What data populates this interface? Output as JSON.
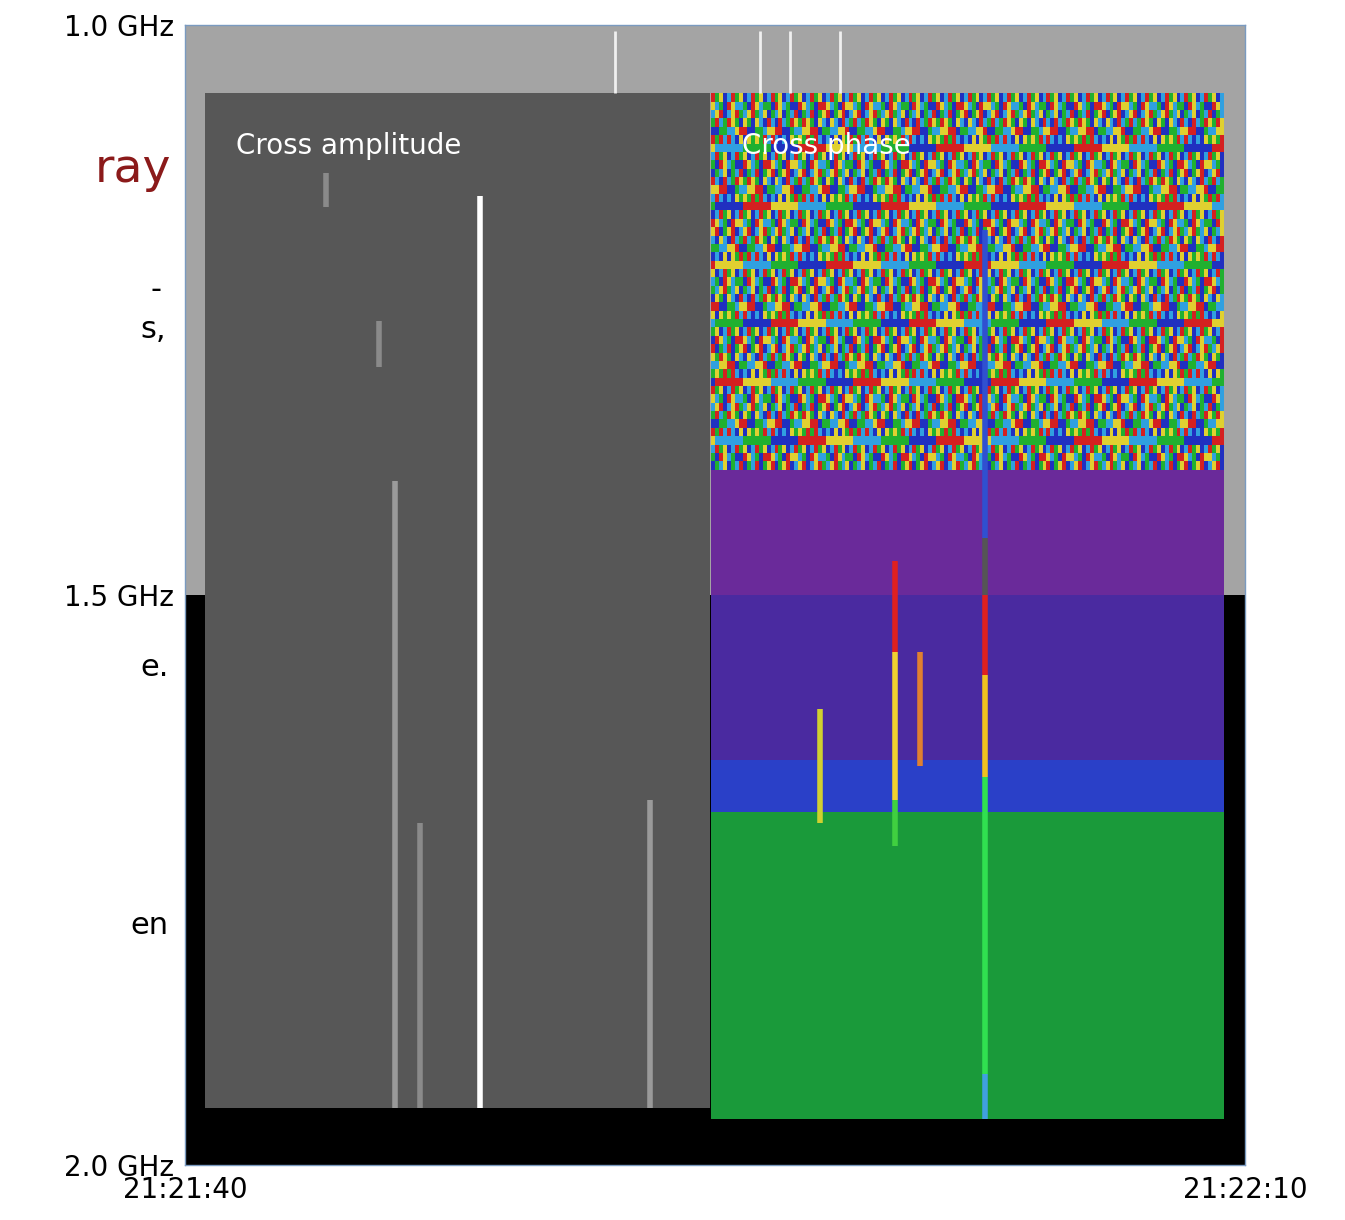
{
  "chart_data": {
    "type": "spectrogram",
    "xlim": [
      0,
      30
    ],
    "xticks": [
      {
        "value": 0,
        "label": "21:21:40"
      },
      {
        "value": 30,
        "label": "21:22:10"
      }
    ],
    "ylim": [
      2.0,
      1.0
    ],
    "yticks": [
      {
        "value": 1.0,
        "label": "1.0 GHz"
      },
      {
        "value": 1.5,
        "label": "1.5 GHz"
      },
      {
        "value": 2.0,
        "label": "2.0 GHz"
      }
    ],
    "background": [
      {
        "from": 1.0,
        "to": 1.5,
        "color": "#a4a4a4"
      },
      {
        "from": 1.5,
        "to": 2.0,
        "color": "#000000"
      }
    ],
    "background_bursts": [
      {
        "time": 12.17,
        "from": 1.005,
        "to": 1.06,
        "color": "#f0f0f0"
      },
      {
        "time": 16.27,
        "from": 1.005,
        "to": 1.06,
        "color": "#f0f0f0"
      },
      {
        "time": 17.12,
        "from": 1.005,
        "to": 1.06,
        "color": "#f0f0f0"
      },
      {
        "time": 18.54,
        "from": 1.005,
        "to": 1.06,
        "color": "#f0f0f0"
      }
    ],
    "panels": [
      {
        "title": "Cross amplitude",
        "time": [
          0.57,
          14.86
        ],
        "freq": [
          1.06,
          1.95
        ],
        "bands": [
          {
            "from": 1.06,
            "to": 1.95,
            "color": "#575757"
          }
        ],
        "bursts": [
          {
            "time": 8.35,
            "segments": [
              {
                "from": 1.15,
                "to": 1.95,
                "color": "#ffffff"
              }
            ]
          },
          {
            "time": 5.94,
            "segments": [
              {
                "from": 1.4,
                "to": 1.95,
                "color": "#9a9a9a"
              }
            ]
          },
          {
            "time": 13.16,
            "segments": [
              {
                "from": 1.68,
                "to": 1.95,
                "color": "#9a9a9a"
              }
            ]
          },
          {
            "time": 6.65,
            "segments": [
              {
                "from": 1.7,
                "to": 1.95,
                "color": "#8a8a8a"
              }
            ]
          },
          {
            "time": 5.5,
            "segments": [
              {
                "from": 1.26,
                "to": 1.3,
                "color": "#8a8a8a"
              }
            ]
          },
          {
            "time": 4.0,
            "segments": [
              {
                "from": 1.13,
                "to": 1.16,
                "color": "#8a8a8a"
              }
            ]
          }
        ]
      },
      {
        "title": "Cross phase",
        "time": [
          14.9,
          29.4
        ],
        "freq": [
          1.06,
          1.96
        ],
        "bands": [
          {
            "from": 1.06,
            "to": 1.39,
            "colors": [
              "#d42020",
              "#20b030",
              "#e0d030",
              "#2030c0",
              "#30a0e0"
            ]
          },
          {
            "from": 1.39,
            "to": 1.5,
            "color": "#6a2a9a"
          },
          {
            "from": 1.5,
            "to": 1.645,
            "color": "#4a2aa0"
          },
          {
            "from": 1.645,
            "to": 1.69,
            "color": "#2a40c8"
          },
          {
            "from": 1.69,
            "to": 1.96,
            "color": "#1a9a3a"
          }
        ],
        "bursts": [
          {
            "time": 22.64,
            "segments": [
              {
                "from": 1.18,
                "to": 1.45,
                "color": "#3050d0"
              },
              {
                "from": 1.45,
                "to": 1.5,
                "color": "#555555"
              },
              {
                "from": 1.5,
                "to": 1.57,
                "color": "#e02020"
              },
              {
                "from": 1.57,
                "to": 1.66,
                "color": "#f0c020"
              },
              {
                "from": 1.66,
                "to": 1.92,
                "color": "#30e050"
              },
              {
                "from": 1.92,
                "to": 1.96,
                "color": "#40a0e0"
              }
            ]
          },
          {
            "time": 20.09,
            "segments": [
              {
                "from": 1.47,
                "to": 1.55,
                "color": "#e02020"
              },
              {
                "from": 1.55,
                "to": 1.68,
                "color": "#f0d030"
              },
              {
                "from": 1.68,
                "to": 1.72,
                "color": "#40d040"
              }
            ]
          },
          {
            "time": 20.8,
            "segments": [
              {
                "from": 1.55,
                "to": 1.65,
                "color": "#e08030"
              }
            ]
          },
          {
            "time": 17.97,
            "segments": [
              {
                "from": 1.6,
                "to": 1.7,
                "color": "#d0d030"
              }
            ]
          }
        ]
      }
    ],
    "slide_text_fragments": [
      {
        "text": "ray",
        "color": "#8b1a1a"
      },
      {
        "text": "-",
        "color": "#000000"
      },
      {
        "text": "s,",
        "color": "#000000"
      },
      {
        "text": "e.",
        "color": "#000000"
      },
      {
        "text": "en",
        "color": "#000000"
      }
    ]
  }
}
